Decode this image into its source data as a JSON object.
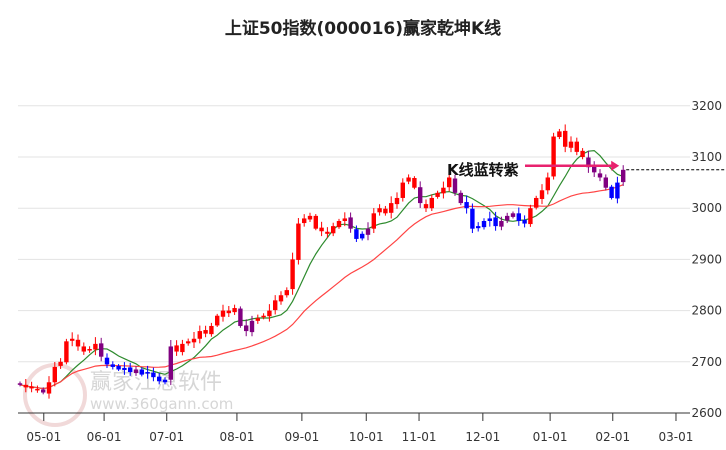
{
  "chart_data": {
    "type": "candlestick",
    "title": "上证50指数(000016)赢家乾坤K线",
    "ylim": [
      2600,
      3200
    ],
    "y_ticks": [
      2600,
      2700,
      2800,
      2900,
      3000,
      3100,
      3200
    ],
    "x_ticks": [
      {
        "label": "05-01",
        "index": 4.1
      },
      {
        "label": "06-01",
        "index": 14.5
      },
      {
        "label": "07-01",
        "index": 25.3
      },
      {
        "label": "08-01",
        "index": 37.4
      },
      {
        "label": "09-01",
        "index": 48.6
      },
      {
        "label": "10-01",
        "index": 59.7
      },
      {
        "label": "11-01",
        "index": 68.8
      },
      {
        "label": "12-01",
        "index": 79.8
      },
      {
        "label": "01-01",
        "index": 91.4
      },
      {
        "label": "02-01",
        "index": 102.2
      },
      {
        "label": "03-01",
        "index": 113.1
      }
    ],
    "closes": [
      2655,
      2650,
      2648,
      2645,
      2640,
      2660,
      2690,
      2700,
      2740,
      2745,
      2730,
      2720,
      2725,
      2735,
      2710,
      2695,
      2690,
      2685,
      2688,
      2680,
      2685,
      2675,
      2680,
      2670,
      2662,
      2665,
      2730,
      2720,
      2735,
      2740,
      2745,
      2760,
      2755,
      2770,
      2790,
      2800,
      2795,
      2805,
      2770,
      2760,
      2780,
      2785,
      2790,
      2800,
      2820,
      2830,
      2840,
      2900,
      2970,
      2980,
      2985,
      2960,
      2955,
      2950,
      2965,
      2975,
      2980,
      2960,
      2940,
      2950,
      2960,
      2990,
      3000,
      2990,
      3010,
      3020,
      3050,
      3060,
      3040,
      3010,
      3000,
      3020,
      3030,
      3040,
      3060,
      3030,
      3010,
      3000,
      2960,
      2965,
      2975,
      2980,
      2965,
      2975,
      2985,
      2990,
      2975,
      2970,
      3000,
      3020,
      3035,
      3060,
      3140,
      3150,
      3120,
      3130,
      3110,
      3100,
      3080,
      3070,
      3060,
      3040,
      3020,
      3050,
      3075
    ],
    "candle_colors": "prrrprrrrrrrrrpbbbbbpbbbbbprrrrrrrrrrrppprrrrrrrrrrrrrrrrpbbprrrrrrrrprrrrrppbbbbbbpppbbrrrrrrrrrrppppbbp",
    "color_key": {
      "r": "#ff0000",
      "b": "#0000ff",
      "p": "#800080"
    },
    "ma_short_color": "#2e8b2e",
    "ma_long_color": "#ff4444",
    "annotation": {
      "text": "K线蓝转紫",
      "price": 3075,
      "color": "#e8226e"
    },
    "grid": true
  },
  "watermark": {
    "name": "赢家江恩软件",
    "url": "www.360gann.com",
    "seal": "江赢恩家"
  }
}
